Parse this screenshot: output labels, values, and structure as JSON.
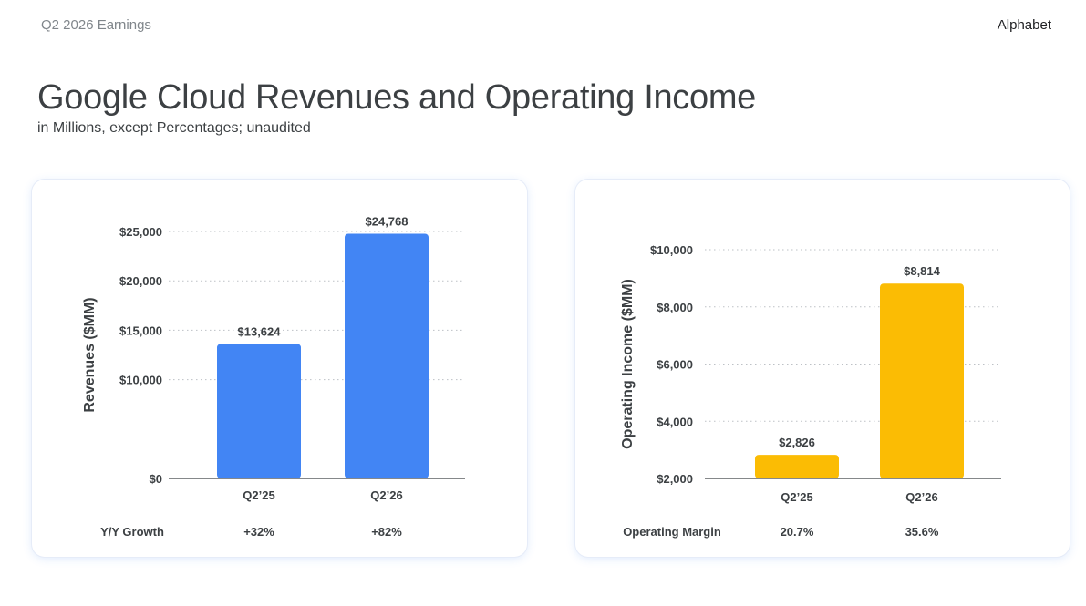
{
  "header": {
    "left_label": "Q2 2026 Earnings",
    "brand": "Alphabet"
  },
  "page": {
    "title": "Google Cloud Revenues and Operating Income",
    "subtitle": "in Millions, except Percentages; unaudited"
  },
  "colors": {
    "revenue_bar": "#4285f4",
    "income_bar": "#fbbc04",
    "text": "#3c4043",
    "grid": "#bdc1c6",
    "axis": "#3c4043"
  },
  "chart_data": [
    {
      "id": "revenues",
      "type": "bar",
      "title": "",
      "xlabel": "",
      "ylabel": "Revenues ($MM)",
      "categories": [
        "Q2’25",
        "Q2’26"
      ],
      "values": [
        13624,
        24768
      ],
      "data_labels": [
        "$13,624",
        "$24,768"
      ],
      "ylim": [
        0,
        25000
      ],
      "yticks": [
        0,
        10000,
        15000,
        20000,
        25000
      ],
      "ytick_labels": [
        "$0",
        "$10,000",
        "$15,000",
        "$20,000",
        "$25,000"
      ],
      "grid": true,
      "grid_style": "dotted",
      "bar_color": "#4285f4",
      "metric": {
        "label": "Y/Y Growth",
        "values": [
          "+32%",
          "+82%"
        ]
      }
    },
    {
      "id": "operating_income",
      "type": "bar",
      "title": "",
      "xlabel": "",
      "ylabel": "Operating Income ($MM)",
      "categories": [
        "Q2’25",
        "Q2’26"
      ],
      "values": [
        2826,
        8814
      ],
      "data_labels": [
        "$2,826",
        "$8,814"
      ],
      "ylim": [
        2000,
        10000
      ],
      "yticks": [
        2000,
        4000,
        6000,
        8000,
        10000
      ],
      "ytick_labels": [
        "$2,000",
        "$4,000",
        "$6,000",
        "$8,000",
        "$10,000"
      ],
      "grid": true,
      "grid_style": "dotted",
      "bar_color": "#fbbc04",
      "metric": {
        "label": "Operating Margin",
        "values": [
          "20.7%",
          "35.6%"
        ]
      }
    }
  ]
}
